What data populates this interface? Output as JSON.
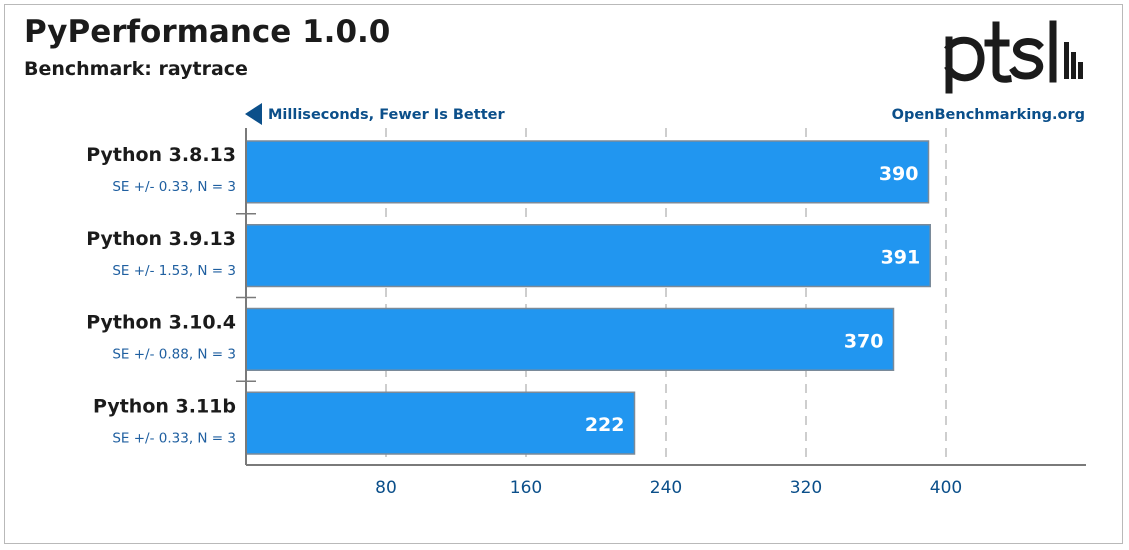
{
  "header": {
    "title": "PyPerformance 1.0.0",
    "subtitle": "Benchmark: raytrace",
    "logo_text": "ptsl"
  },
  "chart_data": {
    "type": "bar",
    "orientation": "horizontal",
    "units_label": "Milliseconds, Fewer Is Better",
    "source_label": "OpenBenchmarking.org",
    "categories": [
      "Python 3.8.13",
      "Python 3.9.13",
      "Python 3.10.4",
      "Python 3.11b"
    ],
    "values": [
      390,
      391,
      370,
      222
    ],
    "value_labels": [
      "390",
      "391",
      "370",
      "222"
    ],
    "notes": [
      "SE +/- 0.33, N = 3",
      "SE +/- 1.53, N = 3",
      "SE +/- 0.88, N = 3",
      "SE +/- 0.33, N = 3"
    ],
    "xticks": [
      80,
      160,
      240,
      320,
      400
    ],
    "xtick_labels": [
      "80",
      "160",
      "240",
      "320",
      "400"
    ],
    "xlim": [
      0,
      480
    ],
    "grid": true,
    "colors": {
      "bar": "#2196f0",
      "bar_border": "#7a8a99",
      "axis": "#7a7a7a",
      "grid": "#bdbdbd",
      "accent": "#0b4f8a",
      "category_text": "#1b1b1b",
      "note_text": "#1f5fa0",
      "value_text": "#ffffff"
    }
  }
}
